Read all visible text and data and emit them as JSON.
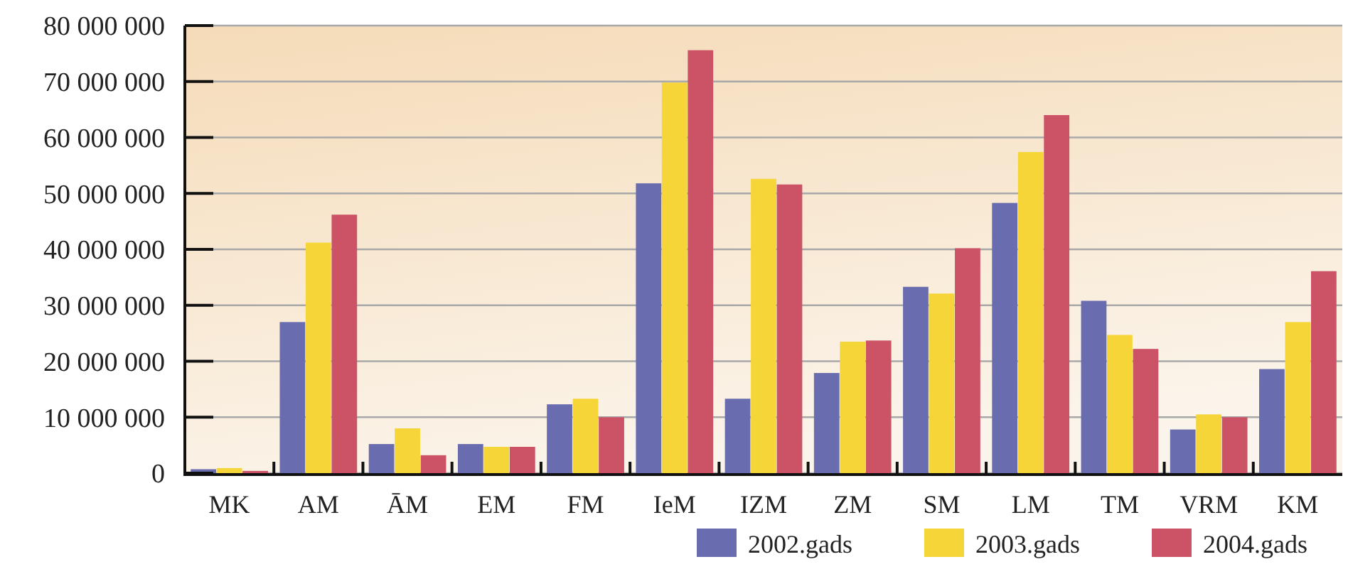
{
  "chart_data": {
    "type": "bar",
    "categories": [
      "MK",
      "AM",
      "ĀM",
      "EM",
      "FM",
      "IeM",
      "IZM",
      "ZM",
      "SM",
      "LM",
      "TM",
      "VRM",
      "KM"
    ],
    "series": [
      {
        "name": "2002.gads",
        "color": "#6a6cb0",
        "values": [
          700000,
          27000000,
          5200000,
          5200000,
          12300000,
          51800000,
          13300000,
          17900000,
          33300000,
          48300000,
          30800000,
          7800000,
          18600000
        ]
      },
      {
        "name": "2003.gads",
        "color": "#f6d538",
        "values": [
          900000,
          41200000,
          8000000,
          4700000,
          13300000,
          69800000,
          52600000,
          23500000,
          32100000,
          57400000,
          24700000,
          10500000,
          27000000
        ]
      },
      {
        "name": "2004.gads",
        "color": "#cc5266",
        "values": [
          400000,
          46200000,
          3200000,
          4700000,
          10000000,
          75600000,
          51600000,
          23700000,
          40200000,
          64000000,
          22200000,
          10000000,
          36100000
        ]
      }
    ],
    "ylim": [
      0,
      80000000
    ],
    "yticks": [
      {
        "value": 0,
        "label": "0"
      },
      {
        "value": 10000000,
        "label": "10 000 000"
      },
      {
        "value": 20000000,
        "label": "20 000 000"
      },
      {
        "value": 30000000,
        "label": "30 000 000"
      },
      {
        "value": 40000000,
        "label": "40 000 000"
      },
      {
        "value": 50000000,
        "label": "50 000 000"
      },
      {
        "value": 60000000,
        "label": "60 000 000"
      },
      {
        "value": 70000000,
        "label": "70 000 000"
      },
      {
        "value": 80000000,
        "label": "80 000 000"
      }
    ],
    "grid": "y",
    "legend": "bottom right"
  }
}
